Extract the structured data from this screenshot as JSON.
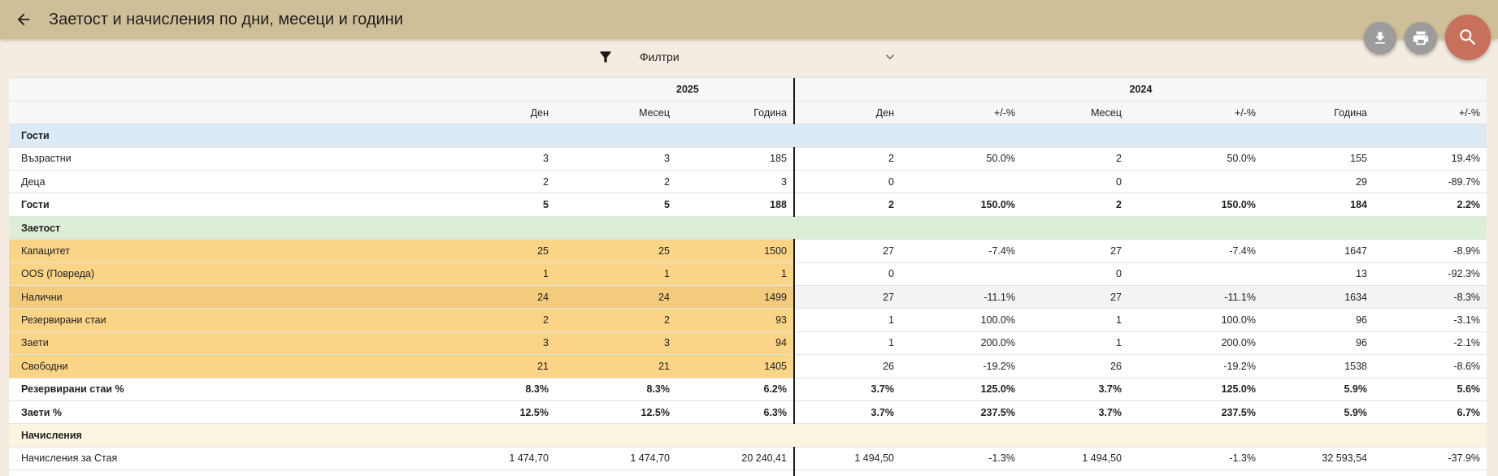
{
  "header": {
    "title": "Заетост и начисления по дни, месеци и години"
  },
  "actions": {
    "download": "download-icon",
    "print": "print-icon",
    "search": "search-icon"
  },
  "filters": {
    "label": "Филтри"
  },
  "table": {
    "year_current": "2025",
    "year_previous": "2024",
    "columns": [
      "",
      "Ден",
      "Месец",
      "Година",
      "Ден",
      "+/-%",
      "Месец",
      "+/-%",
      "Година",
      "+/-%"
    ],
    "sections": {
      "guests": "Гости",
      "occupancy": "Заетост",
      "charges": "Начисления"
    },
    "rows": [
      [
        "Възрастни",
        "3",
        "3",
        "185",
        "2",
        "50.0%",
        "2",
        "50.0%",
        "155",
        "19.4%"
      ],
      [
        "Деца",
        "2",
        "2",
        "3",
        "0",
        "",
        "0",
        "",
        "29",
        "-89.7%"
      ],
      [
        "Гости",
        "5",
        "5",
        "188",
        "2",
        "150.0%",
        "2",
        "150.0%",
        "184",
        "2.2%"
      ],
      [
        "Капацитет",
        "25",
        "25",
        "1500",
        "27",
        "-7.4%",
        "27",
        "-7.4%",
        "1647",
        "-8.9%"
      ],
      [
        "OOS (Повреда)",
        "1",
        "1",
        "1",
        "0",
        "",
        "0",
        "",
        "13",
        "-92.3%"
      ],
      [
        "Налични",
        "24",
        "24",
        "1499",
        "27",
        "-11.1%",
        "27",
        "-11.1%",
        "1634",
        "-8.3%"
      ],
      [
        "Резервирани стаи",
        "2",
        "2",
        "93",
        "1",
        "100.0%",
        "1",
        "100.0%",
        "96",
        "-3.1%"
      ],
      [
        "Заети",
        "3",
        "3",
        "94",
        "1",
        "200.0%",
        "1",
        "200.0%",
        "96",
        "-2.1%"
      ],
      [
        "Свободни",
        "21",
        "21",
        "1405",
        "26",
        "-19.2%",
        "26",
        "-19.2%",
        "1538",
        "-8.6%"
      ],
      [
        "Резервирани стаи %",
        "8.3%",
        "8.3%",
        "6.2%",
        "3.7%",
        "125.0%",
        "3.7%",
        "125.0%",
        "5.9%",
        "5.6%"
      ],
      [
        "Заети %",
        "12.5%",
        "12.5%",
        "6.3%",
        "3.7%",
        "237.5%",
        "3.7%",
        "237.5%",
        "5.9%",
        "6.7%"
      ],
      [
        "Начисления за Стая",
        "1 474,70",
        "1 474,70",
        "20 240,41",
        "1 494,50",
        "-1.3%",
        "1 494,50",
        "-1.3%",
        "32 593,54",
        "-37.9%"
      ]
    ]
  },
  "colors": {
    "appbar": "#cfbf98",
    "search_fab": "#c8705c",
    "highlight": "#fad487"
  }
}
